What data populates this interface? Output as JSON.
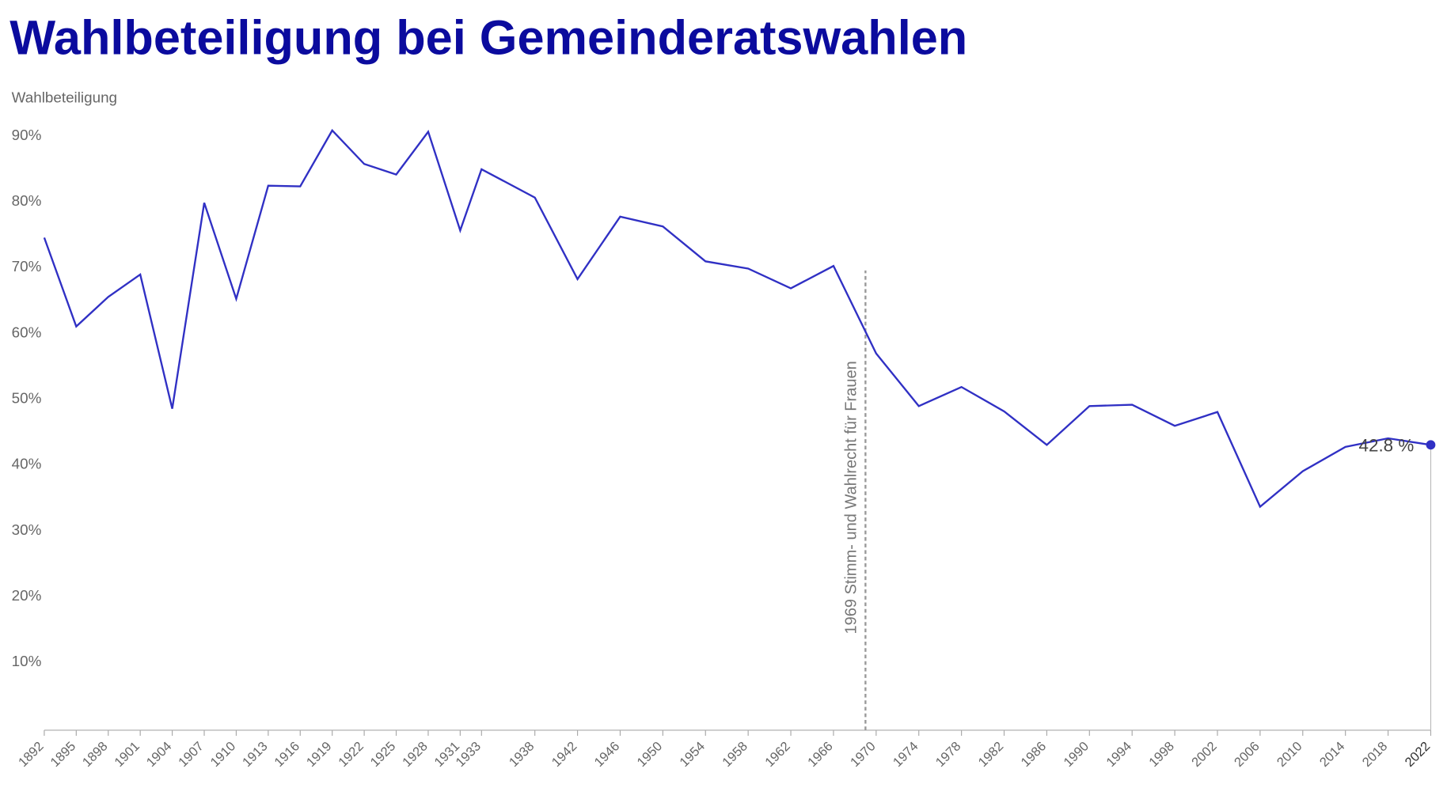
{
  "chart_data": {
    "type": "line",
    "title": "Wahlbeteiligung bei Gemeinderatswahlen",
    "y_label": "Wahlbeteiligung",
    "x": [
      1892,
      1895,
      1898,
      1901,
      1904,
      1907,
      1910,
      1913,
      1916,
      1919,
      1922,
      1925,
      1928,
      1931,
      1933,
      1938,
      1942,
      1946,
      1950,
      1954,
      1958,
      1962,
      1966,
      1970,
      1974,
      1978,
      1982,
      1986,
      1990,
      1994,
      1998,
      2002,
      2006,
      2010,
      2014,
      2018,
      2022
    ],
    "series": [
      {
        "name": "Wahlbeteiligung",
        "color": "#3030c4",
        "values": [
          74.3,
          60.8,
          65.3,
          68.7,
          48.3,
          79.6,
          65.0,
          82.2,
          82.1,
          90.6,
          85.5,
          83.9,
          90.4,
          75.4,
          84.7,
          80.4,
          68.0,
          77.5,
          76.0,
          70.7,
          69.6,
          66.6,
          70.0,
          56.7,
          48.7,
          51.6,
          47.9,
          42.8,
          48.7,
          48.9,
          45.7,
          47.8,
          33.4,
          38.8,
          42.5,
          43.8,
          42.8
        ],
        "value_labels": [
          null,
          null,
          null,
          null,
          null,
          null,
          null,
          null,
          null,
          null,
          null,
          null,
          null,
          null,
          null,
          null,
          null,
          null,
          null,
          null,
          null,
          null,
          null,
          null,
          null,
          null,
          null,
          null,
          null,
          null,
          null,
          null,
          null,
          null,
          null,
          null,
          "42.8 %"
        ]
      }
    ],
    "xlim": [
      1892,
      2022
    ],
    "xticks": [
      1892,
      1895,
      1898,
      1901,
      1904,
      1907,
      1910,
      1913,
      1916,
      1919,
      1922,
      1925,
      1928,
      1931,
      1933,
      1938,
      1942,
      1946,
      1950,
      1954,
      1958,
      1962,
      1966,
      1970,
      1974,
      1978,
      1982,
      1986,
      1990,
      1994,
      1998,
      2002,
      2006,
      2010,
      2014,
      2018,
      2022
    ],
    "ylim": [
      0,
      92
    ],
    "yticks": [
      {
        "value": 10,
        "label": "10%"
      },
      {
        "value": 20,
        "label": "20%"
      },
      {
        "value": 30,
        "label": "30%"
      },
      {
        "value": 40,
        "label": "40%"
      },
      {
        "value": 50,
        "label": "50%"
      },
      {
        "value": 60,
        "label": "60%"
      },
      {
        "value": 70,
        "label": "70%"
      },
      {
        "value": 80,
        "label": "80%"
      },
      {
        "value": 90,
        "label": "90%"
      }
    ],
    "annotations": [
      {
        "x": 1969,
        "text": "1969 Stimm- und Wahlrecht für Frauen"
      }
    ]
  }
}
